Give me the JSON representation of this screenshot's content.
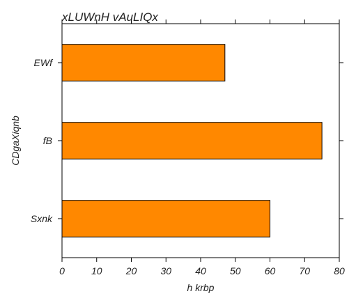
{
  "chart_data": {
    "type": "bar",
    "orientation": "horizontal",
    "title": "xLUWnH vAuLIQx",
    "xlabel": "h krbp",
    "ylabel": "CDgaXiqnb",
    "categories": [
      "EWf",
      "fB",
      "Sxnk"
    ],
    "values": [
      47,
      75,
      60
    ],
    "xlim": [
      0,
      80
    ],
    "xticks": [
      "0",
      "10",
      "20",
      "30",
      "40",
      "50",
      "60",
      "70",
      "80"
    ],
    "grid": false,
    "legend": "none",
    "bar_color": "#ff8800",
    "edge_color": "#000000"
  }
}
